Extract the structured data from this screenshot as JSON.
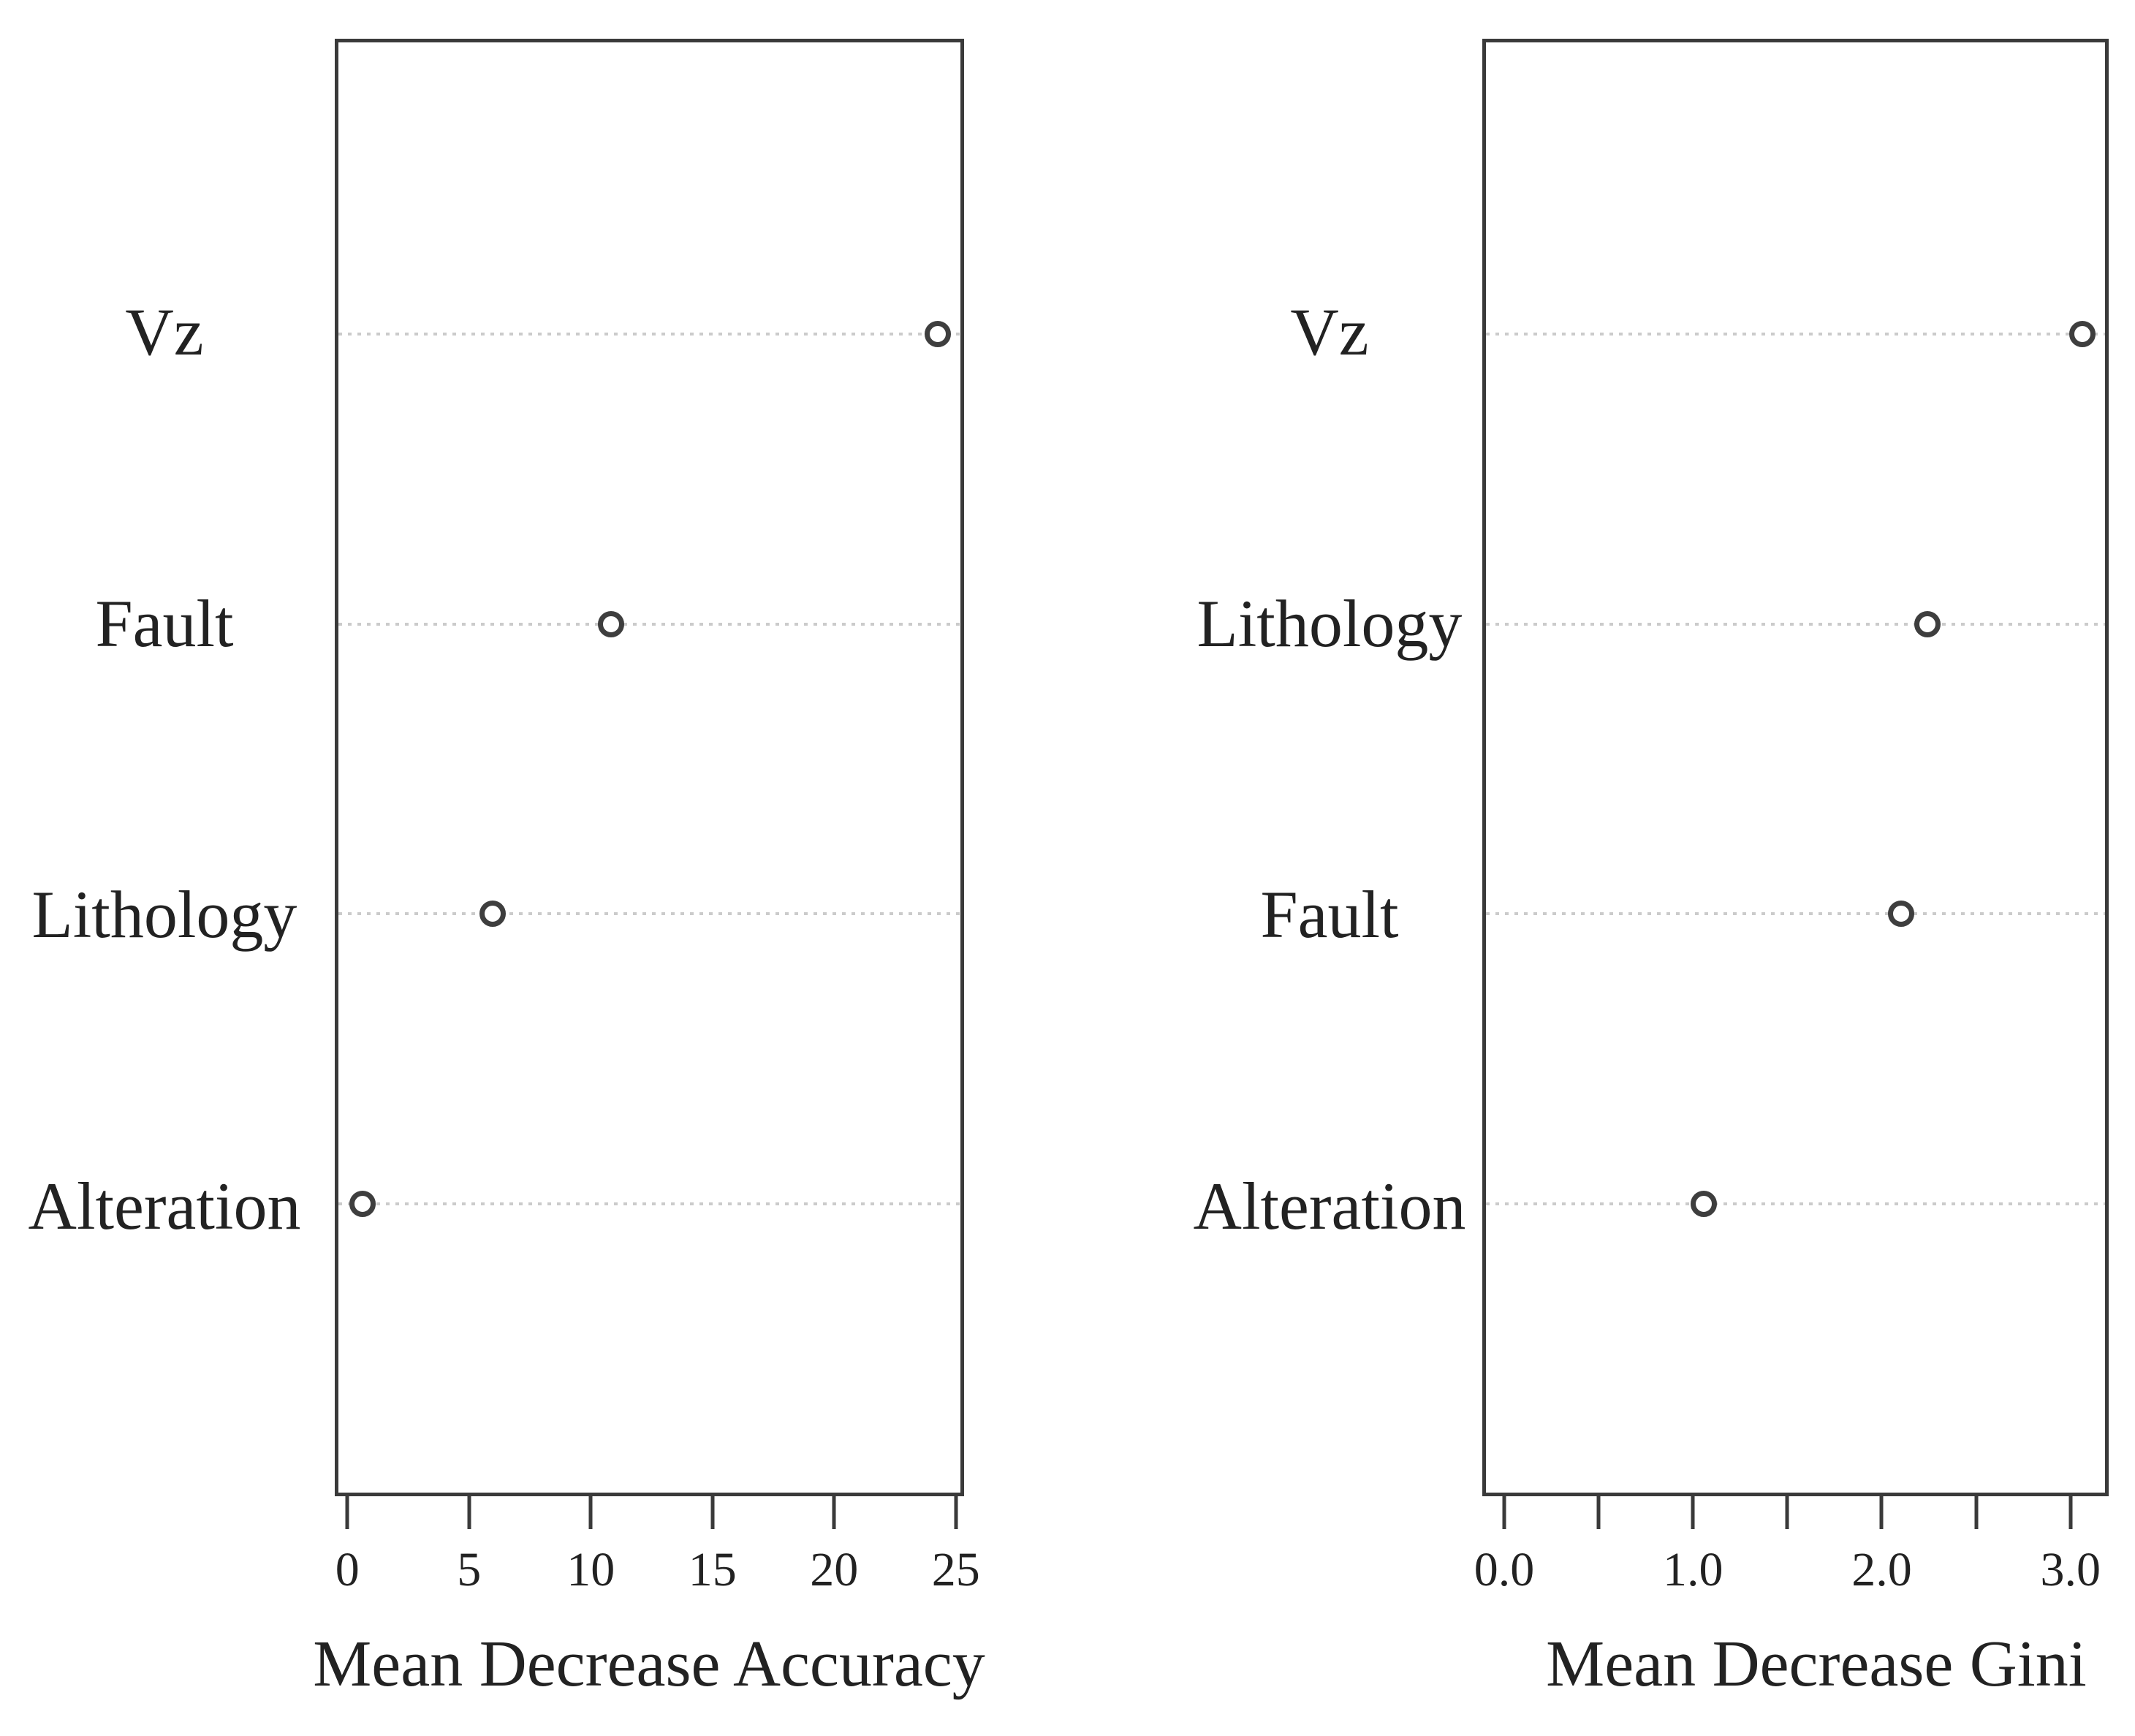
{
  "figure": {
    "description": "Random forest variable importance dot charts, two panels",
    "background": "#ffffff"
  },
  "colors": {
    "marker_stroke": "#3e3e3e",
    "grid_dotted_line": "#cbcbcb",
    "box_border": "#3a3a3a",
    "text": "#222222"
  },
  "icons": {
    "marker": "open-circle"
  },
  "chart_data": [
    {
      "type": "scatter",
      "subtype": "dot-plot",
      "title": "",
      "xlabel": "Mean Decrease Accuracy",
      "ylabel": "",
      "categories": [
        "Vz",
        "Fault",
        "Lithology",
        "Alteration"
      ],
      "values": [
        24.4,
        10.8,
        5.9,
        0.5
      ],
      "xlim": [
        0,
        25
      ],
      "xticks": [
        0,
        5,
        10,
        15,
        20,
        25
      ],
      "xtick_labels": [
        "0",
        "5",
        "10",
        "15",
        "20",
        "25"
      ],
      "grid": "horizontal-dotted-reference-lines",
      "legend": "none"
    },
    {
      "type": "scatter",
      "subtype": "dot-plot",
      "title": "",
      "xlabel": "Mean Decrease Gini",
      "ylabel": "",
      "categories": [
        "Vz",
        "Lithology",
        "Fault",
        "Alteration"
      ],
      "values": [
        3.08,
        2.25,
        2.11,
        1.05
      ],
      "xlim": [
        0,
        3
      ],
      "xticks": [
        0,
        0.5,
        1,
        1.5,
        2,
        2.5,
        3
      ],
      "xtick_labels": [
        "0.0",
        "",
        "1.0",
        "",
        "2.0",
        "",
        "3.0"
      ],
      "grid": "horizontal-dotted-reference-lines",
      "legend": "none"
    }
  ]
}
